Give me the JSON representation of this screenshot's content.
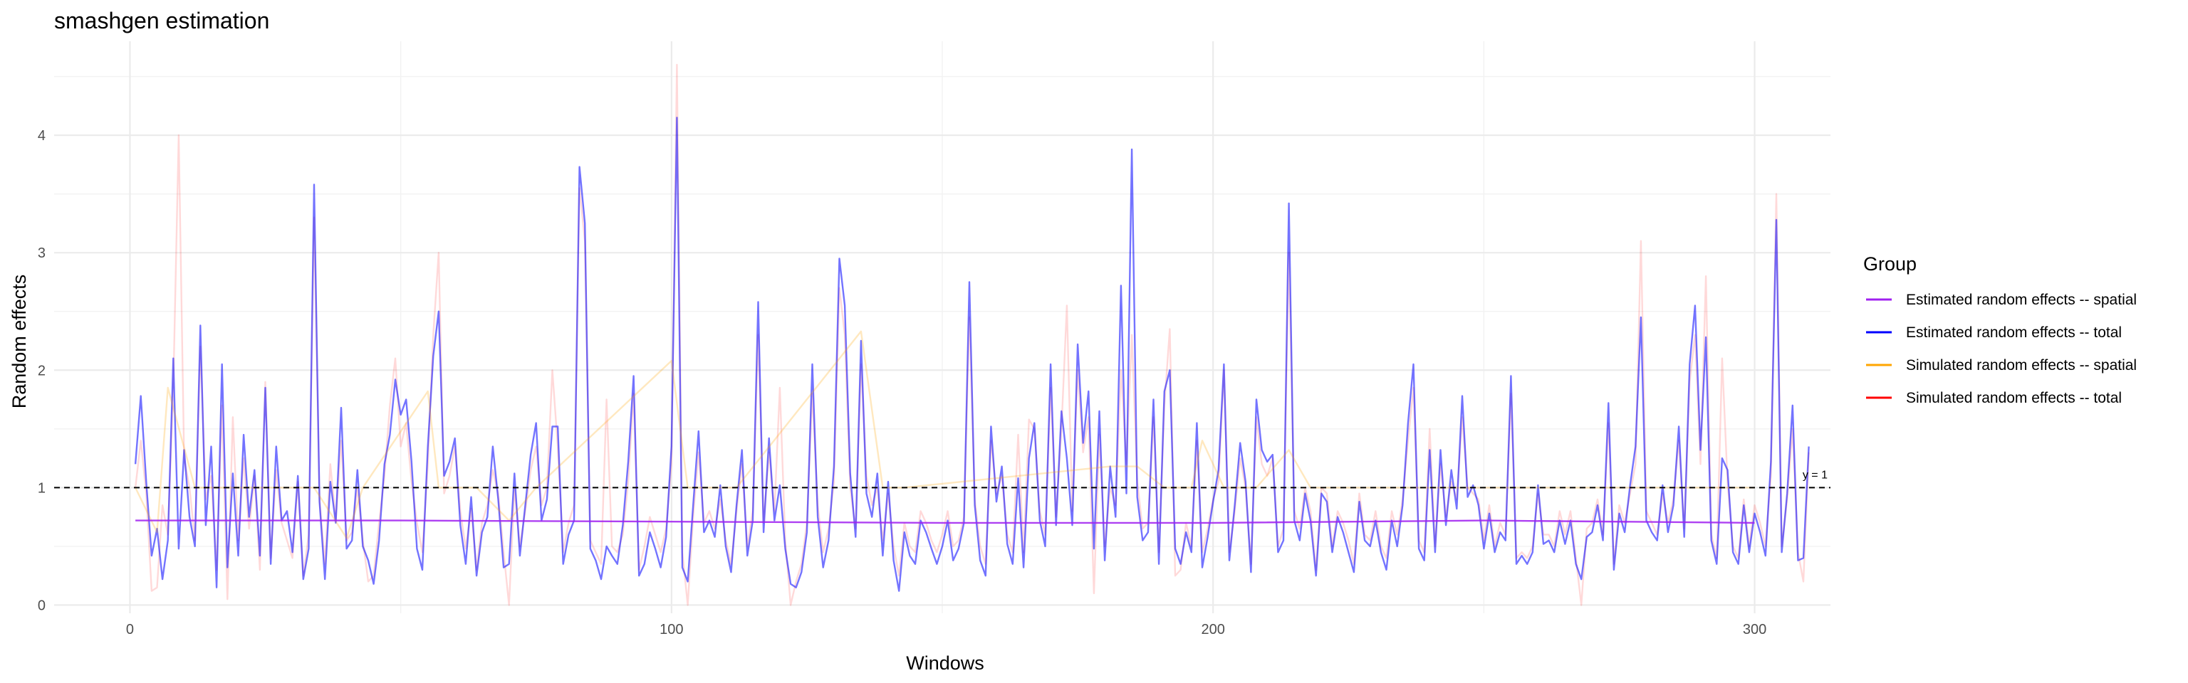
{
  "chart_data": {
    "type": "line",
    "title": "smashgen estimation",
    "xlabel": "Windows",
    "ylabel": "Random effects",
    "xlim": [
      -14,
      314
    ],
    "ylim": [
      -0.07,
      4.8
    ],
    "x_ticks": [
      0,
      100,
      200,
      300
    ],
    "y_ticks": [
      0,
      1,
      2,
      3,
      4
    ],
    "grid": true,
    "legend": {
      "title": "Group",
      "position": "right",
      "entries": [
        {
          "label": "Estimated random effects -- spatial",
          "color": "#a020f0"
        },
        {
          "label": "Estimated random effects -- total",
          "color": "#0000ff"
        },
        {
          "label": "Simulated random effects -- spatial",
          "color": "#ffa500"
        },
        {
          "label": "Simulated random effects -- total",
          "color": "#ff0000"
        }
      ]
    },
    "reference_line": {
      "y": 1,
      "label": "y = 1",
      "style": "dashed"
    },
    "series": [
      {
        "name": "Estimated random effects -- spatial",
        "color": "#a020f0",
        "x": [
          1,
          50,
          100,
          150,
          200,
          250,
          300
        ],
        "y": [
          0.72,
          0.72,
          0.71,
          0.7,
          0.7,
          0.72,
          0.7
        ]
      },
      {
        "name": "Simulated random effects -- spatial",
        "color": "#ffa500",
        "x": [
          1,
          5,
          7,
          12,
          17,
          34,
          40,
          43,
          55,
          57,
          64,
          70,
          75,
          100,
          103,
          112,
          135,
          139,
          143,
          181,
          186,
          191,
          196,
          198,
          202,
          208,
          214,
          218,
          222,
          300
        ],
        "y": [
          1,
          0.62,
          1.85,
          1,
          1,
          1,
          0.57,
          1,
          1.82,
          1,
          1,
          0.72,
          1,
          2.08,
          1,
          1,
          2.33,
          1,
          1,
          1.18,
          1.18,
          1,
          1,
          1.4,
          1,
          1,
          1.32,
          1,
          1,
          1
        ]
      },
      {
        "name": "Estimated random effects -- total",
        "color": "#0000ff",
        "y": [
          1.2,
          1.78,
          1.05,
          0.42,
          0.65,
          0.22,
          0.55,
          2.1,
          0.48,
          1.32,
          0.75,
          0.5,
          2.38,
          0.68,
          1.35,
          0.15,
          2.05,
          0.32,
          1.12,
          0.42,
          1.45,
          0.75,
          1.15,
          0.42,
          1.85,
          0.35,
          1.35,
          0.72,
          0.8,
          0.45,
          1.1,
          0.22,
          0.48,
          3.58,
          0.88,
          0.22,
          1.05,
          0.7,
          1.68,
          0.48,
          0.55,
          1.15,
          0.5,
          0.38,
          0.18,
          0.55,
          1.2,
          1.45,
          1.92,
          1.62,
          1.75,
          1.22,
          0.48,
          0.3,
          1.35,
          2.12,
          2.5,
          1.1,
          1.22,
          1.42,
          0.68,
          0.35,
          0.92,
          0.25,
          0.62,
          0.75,
          1.35,
          0.9,
          0.32,
          0.35,
          1.12,
          0.42,
          0.85,
          1.28,
          1.55,
          0.72,
          0.9,
          1.52,
          1.52,
          0.35,
          0.6,
          0.72,
          3.73,
          3.25,
          0.48,
          0.38,
          0.22,
          0.5,
          0.42,
          0.35,
          0.68,
          1.22,
          1.95,
          0.25,
          0.35,
          0.62,
          0.48,
          0.32,
          0.58,
          1.35,
          4.15,
          0.32,
          0.2,
          0.85,
          1.48,
          0.62,
          0.72,
          0.58,
          1.02,
          0.5,
          0.28,
          0.85,
          1.32,
          0.42,
          0.72,
          2.58,
          0.62,
          1.42,
          0.72,
          1.02,
          0.48,
          0.18,
          0.15,
          0.28,
          0.62,
          2.05,
          0.75,
          0.32,
          0.55,
          1.18,
          2.95,
          2.55,
          1.12,
          0.58,
          2.25,
          0.95,
          0.75,
          1.12,
          0.42,
          1.05,
          0.38,
          0.12,
          0.62,
          0.42,
          0.35,
          0.72,
          0.62,
          0.48,
          0.35,
          0.5,
          0.72,
          0.38,
          0.48,
          0.7,
          2.75,
          0.85,
          0.38,
          0.25,
          1.52,
          0.88,
          1.18,
          0.52,
          0.35,
          1.08,
          0.32,
          1.25,
          1.55,
          0.72,
          0.5,
          2.05,
          0.68,
          1.65,
          1.25,
          0.68,
          2.22,
          1.38,
          1.82,
          0.48,
          1.65,
          0.38,
          1.18,
          0.75,
          2.72,
          0.95,
          3.88,
          0.92,
          0.55,
          0.62,
          1.75,
          0.35,
          1.82,
          2.0,
          0.48,
          0.35,
          0.62,
          0.45,
          1.55,
          0.32,
          0.58,
          0.88,
          1.15,
          2.05,
          0.38,
          0.85,
          1.38,
          1.05,
          0.28,
          1.75,
          1.32,
          1.22,
          1.28,
          0.45,
          0.55,
          3.42,
          0.72,
          0.55,
          0.95,
          0.72,
          0.25,
          0.95,
          0.88,
          0.45,
          0.75,
          0.62,
          0.45,
          0.28,
          0.88,
          0.55,
          0.5,
          0.72,
          0.45,
          0.3,
          0.72,
          0.5,
          0.85,
          1.55,
          2.05,
          0.48,
          0.38,
          1.32,
          0.45,
          1.32,
          0.68,
          1.15,
          0.82,
          1.78,
          0.92,
          1.02,
          0.85,
          0.48,
          0.78,
          0.45,
          0.62,
          0.55,
          1.95,
          0.35,
          0.42,
          0.35,
          0.45,
          1.02,
          0.52,
          0.55,
          0.45,
          0.72,
          0.52,
          0.72,
          0.35,
          0.22,
          0.58,
          0.62,
          0.85,
          0.55,
          1.72,
          0.3,
          0.78,
          0.62,
          1.02,
          1.35,
          2.45,
          0.72,
          0.62,
          0.55,
          1.02,
          0.62,
          0.85,
          1.52,
          0.58,
          2.05,
          2.55,
          1.32,
          2.28,
          0.55,
          0.35,
          1.25,
          1.15,
          0.45,
          0.35,
          0.85,
          0.45,
          0.78,
          0.62,
          0.42,
          1.22,
          3.28,
          0.45,
          0.95,
          1.7,
          0.38,
          0.4,
          1.35
        ]
      },
      {
        "name": "Simulated random effects -- total",
        "color": "#ff0000",
        "y": [
          1.0,
          1.4,
          0.95,
          0.12,
          0.15,
          0.85,
          0.6,
          1.85,
          4.0,
          1.25,
          1.0,
          0.55,
          2.2,
          0.9,
          1.1,
          0.3,
          1.7,
          0.05,
          1.6,
          0.55,
          1.25,
          0.65,
          1.1,
          0.3,
          1.9,
          0.4,
          1.15,
          0.7,
          0.55,
          0.4,
          1.05,
          0.25,
          0.6,
          3.3,
          0.9,
          0.35,
          1.2,
          0.72,
          1.4,
          0.55,
          0.62,
          1.0,
          0.55,
          0.2,
          0.25,
          0.7,
          1.1,
          1.7,
          2.1,
          1.35,
          1.55,
          1.05,
          0.7,
          0.45,
          1.2,
          2.3,
          3.0,
          0.95,
          1.1,
          1.35,
          0.8,
          0.48,
          0.82,
          0.3,
          0.7,
          0.85,
          1.15,
          0.95,
          0.45,
          0.0,
          1.0,
          0.5,
          0.8,
          1.15,
          1.35,
          0.85,
          1.0,
          2.0,
          1.35,
          0.45,
          0.7,
          0.85,
          3.55,
          3.1,
          0.55,
          0.45,
          0.35,
          1.75,
          0.5,
          0.45,
          0.6,
          1.05,
          1.8,
          0.3,
          0.5,
          0.75,
          0.6,
          0.45,
          0.65,
          1.2,
          4.6,
          0.45,
          0.0,
          0.75,
          1.3,
          0.7,
          0.8,
          0.65,
          0.9,
          0.55,
          0.35,
          0.8,
          1.2,
          0.5,
          0.8,
          2.3,
          0.7,
          1.3,
          0.8,
          1.85,
          0.55,
          0.0,
          0.2,
          0.35,
          0.7,
          1.8,
          0.85,
          0.45,
          0.65,
          1.05,
          2.7,
          2.3,
          1.0,
          0.65,
          2.05,
          1.1,
          0.85,
          1.0,
          0.55,
          0.95,
          0.5,
          0.25,
          0.7,
          0.5,
          0.45,
          0.8,
          0.7,
          0.55,
          0.45,
          0.6,
          0.8,
          0.5,
          0.55,
          0.75,
          2.45,
          0.9,
          0.5,
          0.35,
          1.4,
          0.95,
          1.1,
          0.6,
          0.45,
          1.45,
          0.45,
          1.58,
          1.5,
          0.8,
          0.6,
          1.85,
          0.75,
          1.5,
          2.55,
          0.8,
          2.0,
          1.3,
          1.6,
          0.1,
          1.45,
          0.5,
          1.0,
          0.85,
          2.0,
          1.2,
          2.3,
          1.05,
          0.65,
          0.7,
          1.6,
          0.45,
          1.7,
          2.35,
          0.25,
          0.3,
          0.7,
          0.5,
          1.4,
          0.45,
          0.65,
          0.9,
          1.05,
          2.0,
          0.45,
          0.8,
          1.25,
          1.0,
          0.35,
          1.6,
          1.2,
          1.1,
          1.25,
          0.5,
          0.65,
          3.0,
          0.8,
          0.65,
          1.0,
          0.8,
          0.3,
          1.0,
          0.95,
          0.5,
          0.8,
          0.7,
          0.55,
          0.35,
          0.95,
          0.6,
          0.55,
          0.8,
          0.5,
          0.4,
          0.8,
          0.6,
          0.9,
          1.4,
          1.85,
          0.55,
          0.45,
          1.5,
          0.5,
          1.2,
          0.75,
          1.05,
          0.9,
          1.6,
          1.0,
          0.95,
          0.9,
          0.55,
          0.85,
          0.5,
          0.7,
          0.6,
          1.8,
          0.4,
          0.45,
          0.4,
          0.5,
          0.95,
          0.6,
          0.6,
          0.5,
          0.8,
          0.6,
          0.8,
          0.4,
          0.0,
          0.65,
          0.7,
          0.9,
          0.6,
          1.55,
          0.35,
          0.85,
          0.7,
          0.95,
          1.2,
          3.1,
          0.8,
          0.7,
          0.6,
          0.95,
          0.7,
          0.9,
          1.4,
          0.65,
          1.9,
          2.3,
          1.2,
          2.8,
          0.6,
          0.4,
          2.1,
          1.05,
          0.5,
          0.4,
          0.9,
          0.5,
          0.85,
          0.7,
          0.5,
          1.1,
          3.5,
          0.5,
          0.9,
          1.5,
          0.45,
          0.2,
          1.3
        ]
      }
    ]
  }
}
